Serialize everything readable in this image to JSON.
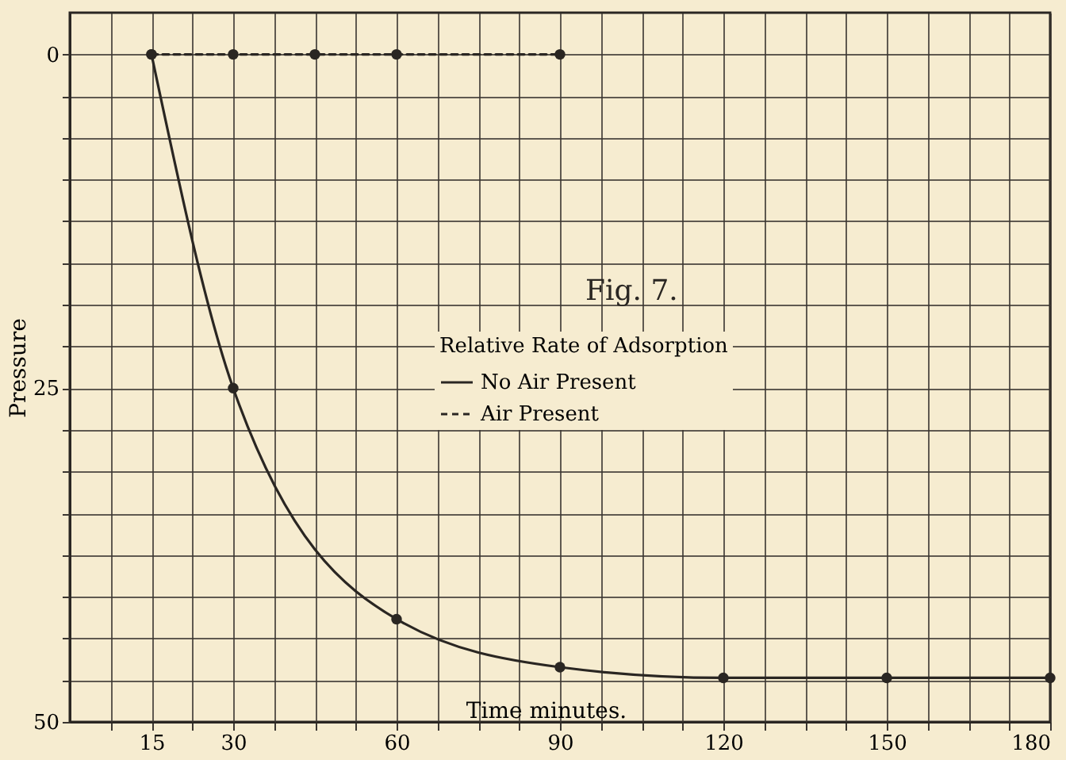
{
  "chart_data": {
    "type": "line",
    "xlabel": "Time minutes.",
    "ylabel": "Pressure",
    "legend_title": "Relative Rate of Adsorption",
    "annotations": [
      "Fig. 7."
    ],
    "xlim": [
      0,
      180
    ],
    "xticks": [
      {
        "value": 7.5,
        "label": null
      },
      15,
      {
        "value": 22.5,
        "label": null
      },
      30,
      {
        "value": 37.5,
        "label": null
      },
      {
        "value": 45,
        "label": null
      },
      {
        "value": 52.5,
        "label": null
      },
      60,
      {
        "value": 67.5,
        "label": null
      },
      {
        "value": 75,
        "label": null
      },
      {
        "value": 82.5,
        "label": null
      },
      90,
      {
        "value": 97.5,
        "label": null
      },
      {
        "value": 105,
        "label": null
      },
      {
        "value": 112.5,
        "label": null
      },
      120,
      {
        "value": 127.5,
        "label": null
      },
      {
        "value": 135,
        "label": null
      },
      {
        "value": 142.5,
        "label": null
      },
      150,
      {
        "value": 157.5,
        "label": null
      },
      {
        "value": 165,
        "label": null
      },
      {
        "value": 172.5,
        "label": null
      },
      180
    ],
    "ylim": [
      50,
      -3.125
    ],
    "yticks": [
      0,
      {
        "value": 3.125,
        "label": null
      },
      {
        "value": 6.25,
        "label": null
      },
      {
        "value": 9.375,
        "label": null
      },
      {
        "value": 12.5,
        "label": null
      },
      {
        "value": 15.625,
        "label": null
      },
      {
        "value": 18.75,
        "label": null
      },
      {
        "value": 21.875,
        "label": null
      },
      25,
      {
        "value": 28.125,
        "label": null
      },
      {
        "value": 31.25,
        "label": null
      },
      {
        "value": 34.375,
        "label": null
      },
      {
        "value": 37.5,
        "label": null
      },
      {
        "value": 40.625,
        "label": null
      },
      {
        "value": 43.75,
        "label": null
      },
      {
        "value": 46.875,
        "label": null
      },
      50
    ],
    "grid": true,
    "legend": "right",
    "marker": "circle",
    "series": [
      {
        "name": "No Air Present",
        "color": "#2a2622",
        "line_style": "solid",
        "x": [
          15,
          30,
          60,
          90,
          120,
          150,
          180
        ],
        "values": [
          0,
          25,
          42.3,
          45.9,
          46.7,
          46.7,
          46.7
        ]
      },
      {
        "name": "Air Present",
        "color": "#2a2622",
        "line_style": "dashed",
        "x": [
          15,
          30,
          45,
          60,
          90
        ],
        "values": [
          0,
          0,
          0,
          0,
          0
        ]
      }
    ]
  }
}
